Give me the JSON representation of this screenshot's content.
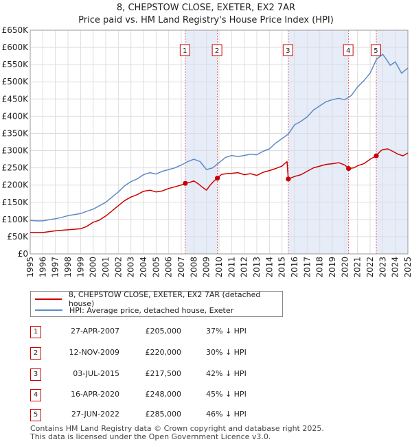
{
  "title": "8, CHEPSTOW CLOSE, EXETER, EX2 7AR",
  "subtitle": "Price paid vs. HM Land Registry's House Price Index (HPI)",
  "colors": {
    "property": "#cc0000",
    "hpi": "#5b8ac6",
    "shade": "#dde6f5",
    "vline": "#e06060",
    "grid": "#dddddd"
  },
  "chart_data": {
    "type": "line",
    "xlim": [
      1995,
      2025
    ],
    "ylim": [
      0,
      650000
    ],
    "yticks": [
      0,
      50000,
      100000,
      150000,
      200000,
      250000,
      300000,
      350000,
      400000,
      450000,
      500000,
      550000,
      600000,
      650000
    ],
    "ytick_labels": [
      "£0",
      "£50K",
      "£100K",
      "£150K",
      "£200K",
      "£250K",
      "£300K",
      "£350K",
      "£400K",
      "£450K",
      "£500K",
      "£550K",
      "£600K",
      "£650K"
    ],
    "xticks": [
      1995,
      1996,
      1997,
      1998,
      1999,
      2000,
      2001,
      2002,
      2003,
      2004,
      2005,
      2006,
      2007,
      2008,
      2009,
      2010,
      2011,
      2012,
      2013,
      2014,
      2015,
      2016,
      2017,
      2018,
      2019,
      2020,
      2021,
      2022,
      2023,
      2024,
      2025
    ],
    "shaded_spans": [
      [
        2007.32,
        2009.87
      ],
      [
        2015.5,
        2020.29
      ],
      [
        2022.49,
        2025.0
      ]
    ],
    "series": [
      {
        "name": "8, CHEPSTOW CLOSE, EXETER, EX2 7AR (detached house)",
        "x": [
          1995.0,
          1996.0,
          1997.0,
          1998.0,
          1999.0,
          1999.5,
          2000.0,
          2000.5,
          2001.0,
          2001.5,
          2002.0,
          2002.5,
          2003.0,
          2003.5,
          2004.0,
          2004.5,
          2005.0,
          2005.5,
          2006.0,
          2006.5,
          2007.0,
          2007.32,
          2007.7,
          2008.0,
          2008.3,
          2008.6,
          2009.0,
          2009.3,
          2009.6,
          2009.87,
          2010.2,
          2010.6,
          2011.0,
          2011.5,
          2012.0,
          2012.5,
          2013.0,
          2013.5,
          2014.0,
          2014.5,
          2015.0,
          2015.2,
          2015.4,
          2015.5,
          2016.0,
          2016.5,
          2017.0,
          2017.5,
          2018.0,
          2018.5,
          2019.0,
          2019.5,
          2020.0,
          2020.29,
          2020.7,
          2021.0,
          2021.5,
          2022.0,
          2022.49,
          2022.8,
          2023.0,
          2023.4,
          2023.8,
          2024.2,
          2024.6,
          2025.0
        ],
        "y": [
          62000,
          62000,
          67000,
          70000,
          73000,
          80000,
          92000,
          98000,
          110000,
          125000,
          140000,
          155000,
          165000,
          172000,
          182000,
          185000,
          180000,
          183000,
          190000,
          195000,
          200000,
          205000,
          208000,
          212000,
          205000,
          196000,
          185000,
          200000,
          212000,
          220000,
          231000,
          233000,
          234000,
          236000,
          230000,
          233000,
          228000,
          237000,
          242000,
          248000,
          255000,
          262000,
          268000,
          217500,
          225000,
          230000,
          240000,
          250000,
          255000,
          260000,
          262000,
          265000,
          258000,
          248000,
          250000,
          256000,
          262000,
          275000,
          285000,
          298000,
          303000,
          305000,
          298000,
          290000,
          285000,
          293000
        ]
      },
      {
        "name": "HPI: Average price, detached house, Exeter",
        "x": [
          1995.0,
          1995.5,
          1996.0,
          1996.5,
          1997.0,
          1997.5,
          1998.0,
          1998.5,
          1999.0,
          1999.5,
          2000.0,
          2000.5,
          2001.0,
          2001.5,
          2002.0,
          2002.5,
          2003.0,
          2003.5,
          2004.0,
          2004.5,
          2005.0,
          2005.5,
          2006.0,
          2006.5,
          2007.0,
          2007.5,
          2008.0,
          2008.5,
          2009.0,
          2009.5,
          2010.0,
          2010.5,
          2011.0,
          2011.5,
          2012.0,
          2012.5,
          2013.0,
          2013.5,
          2014.0,
          2014.5,
          2015.0,
          2015.5,
          2016.0,
          2016.5,
          2017.0,
          2017.5,
          2018.0,
          2018.5,
          2019.0,
          2019.5,
          2020.0,
          2020.5,
          2021.0,
          2021.5,
          2022.0,
          2022.5,
          2023.0,
          2023.3,
          2023.6,
          2024.0,
          2024.5,
          2025.0
        ],
        "y": [
          97000,
          96000,
          96000,
          99000,
          102000,
          106000,
          111000,
          114000,
          117000,
          124000,
          130000,
          140000,
          150000,
          165000,
          180000,
          198000,
          210000,
          218000,
          230000,
          236000,
          232000,
          240000,
          245000,
          250000,
          258000,
          268000,
          275000,
          268000,
          245000,
          250000,
          265000,
          280000,
          286000,
          283000,
          286000,
          290000,
          288000,
          298000,
          305000,
          322000,
          335000,
          348000,
          375000,
          385000,
          398000,
          418000,
          430000,
          442000,
          448000,
          452000,
          448000,
          460000,
          485000,
          503000,
          525000,
          565000,
          580000,
          565000,
          548000,
          558000,
          525000,
          540000
        ]
      }
    ],
    "sales": [
      {
        "id": "1",
        "x": 2007.32,
        "y": 205000
      },
      {
        "id": "2",
        "x": 2009.87,
        "y": 220000
      },
      {
        "id": "3",
        "x": 2015.5,
        "y": 217500
      },
      {
        "id": "4",
        "x": 2020.29,
        "y": 248000
      },
      {
        "id": "5",
        "x": 2022.49,
        "y": 285000
      }
    ]
  },
  "legend": {
    "property_label": "8, CHEPSTOW CLOSE, EXETER, EX2 7AR (detached house)",
    "hpi_label": "HPI: Average price, detached house, Exeter"
  },
  "transactions": [
    {
      "id": "1",
      "date": "27-APR-2007",
      "price": "£205,000",
      "hpi": "37% ↓ HPI"
    },
    {
      "id": "2",
      "date": "12-NOV-2009",
      "price": "£220,000",
      "hpi": "30% ↓ HPI"
    },
    {
      "id": "3",
      "date": "03-JUL-2015",
      "price": "£217,500",
      "hpi": "42% ↓ HPI"
    },
    {
      "id": "4",
      "date": "16-APR-2020",
      "price": "£248,000",
      "hpi": "45% ↓ HPI"
    },
    {
      "id": "5",
      "date": "27-JUN-2022",
      "price": "£285,000",
      "hpi": "46% ↓ HPI"
    }
  ],
  "footer": {
    "line1": "Contains HM Land Registry data © Crown copyright and database right 2025.",
    "line2": "This data is licensed under the Open Government Licence v3.0."
  }
}
